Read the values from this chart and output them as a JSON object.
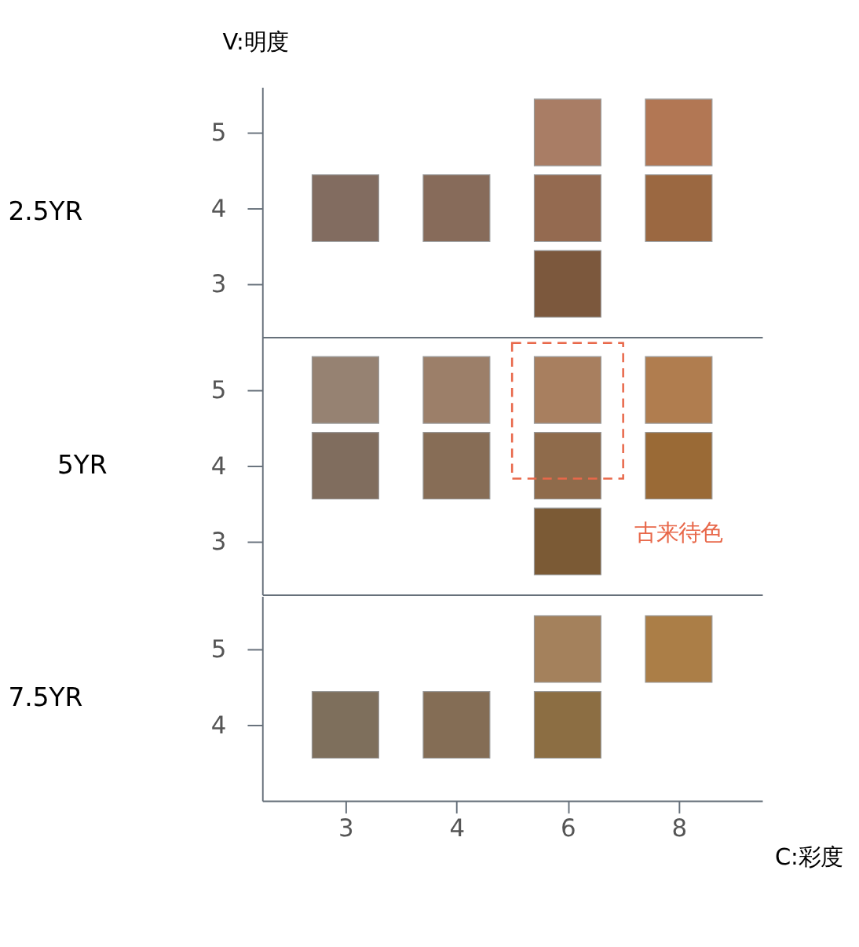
{
  "chart_data": [
    {
      "type": "scatter",
      "title": "2.5YR",
      "ylabel": "V:明度",
      "categories": [
        "3",
        "4",
        "6",
        "8"
      ],
      "marker": "square",
      "grid": false,
      "tick_labels": "y",
      "ylim": [
        2.3,
        5.6
      ],
      "yticks": [
        3,
        4,
        5
      ],
      "series": [
        {
          "x": [
            "3",
            "4",
            "6",
            "6",
            "6",
            "8",
            "8"
          ],
          "values": [
            4,
            4,
            5,
            4,
            3,
            5,
            4
          ],
          "colors": [
            "#826c60",
            "#876b5a",
            "#a97d65",
            "#946a50",
            "#7c583d",
            "#b27754",
            "#9b6841"
          ]
        }
      ]
    },
    {
      "type": "scatter",
      "title": "5YR",
      "categories": [
        "3",
        "4",
        "6",
        "8"
      ],
      "marker": "square",
      "grid": false,
      "tick_labels": "y",
      "ylim": [
        2.3,
        5.7
      ],
      "yticks": [
        3,
        4,
        5
      ],
      "annotations": [
        "古来待色"
      ],
      "series": [
        {
          "x": [
            "3",
            "4",
            "6",
            "8",
            "3",
            "4",
            "6",
            "8",
            "6"
          ],
          "values": [
            5,
            5,
            5,
            5,
            4,
            4,
            4,
            4,
            3
          ],
          "colors": [
            "#968272",
            "#9c7f69",
            "#a87f5f",
            "#b07d4f",
            "#806d5e",
            "#876d56",
            "#8f6b4b",
            "#9a6a36",
            "#7b5a35"
          ]
        }
      ]
    },
    {
      "type": "scatter",
      "title": "7.5YR",
      "xlabel": "C:彩度",
      "categories": [
        "3",
        "4",
        "6",
        "8"
      ],
      "marker": "square",
      "grid": false,
      "ylim": [
        3,
        5.7
      ],
      "yticks": [
        4,
        5
      ],
      "series": [
        {
          "x": [
            "6",
            "8",
            "3",
            "4",
            "6"
          ],
          "values": [
            5,
            5,
            4,
            4,
            4
          ],
          "colors": [
            "#a4815c",
            "#ab7e47",
            "#7e6f5c",
            "#846d55",
            "#8c6e43"
          ]
        }
      ]
    }
  ]
}
